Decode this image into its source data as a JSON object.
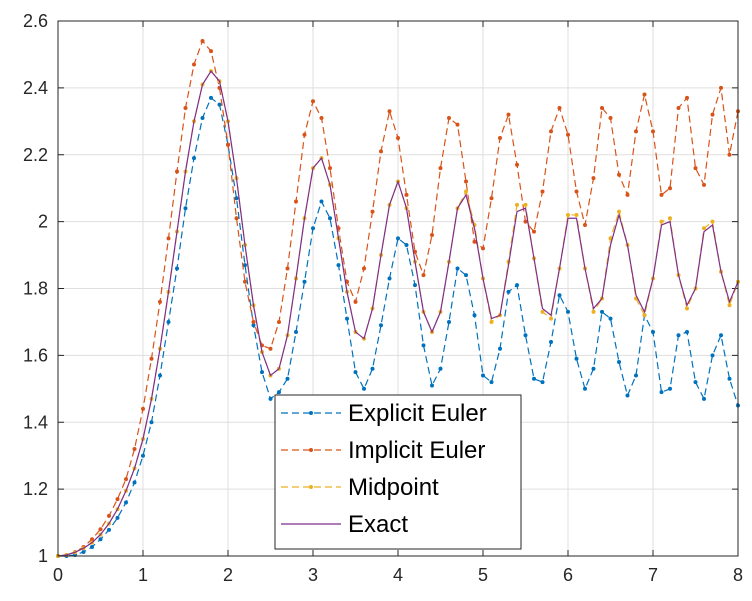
{
  "chart_data": {
    "type": "line",
    "title": "",
    "xlabel": "",
    "ylabel": "",
    "xlim": [
      0,
      8
    ],
    "ylim": [
      1,
      2.6
    ],
    "xticks": [
      "0",
      "1",
      "2",
      "3",
      "4",
      "5",
      "6",
      "7",
      "8"
    ],
    "yticks": [
      "1",
      "1.2",
      "1.4",
      "1.6",
      "1.8",
      "2",
      "2.2",
      "2.4",
      "2.6"
    ],
    "grid": true,
    "legend_position": "bottom-center",
    "series": [
      {
        "name": "Explicit Euler",
        "color": "#0072BD",
        "style": "dashed-dots",
        "x": [
          0,
          0.1,
          0.2,
          0.3,
          0.4,
          0.5,
          0.6,
          0.7,
          0.8,
          0.9,
          1.0,
          1.1,
          1.2,
          1.3,
          1.4,
          1.5,
          1.6,
          1.7,
          1.8,
          1.9,
          2.0,
          2.1,
          2.2,
          2.3,
          2.4,
          2.5,
          2.6,
          2.7,
          2.8,
          2.9,
          3.0,
          3.1,
          3.2,
          3.3,
          3.4,
          3.5,
          3.6,
          3.7,
          3.8,
          3.9,
          4.0,
          4.1,
          4.2,
          4.3,
          4.4,
          4.5,
          4.6,
          4.7,
          4.8,
          4.9,
          5.0,
          5.1,
          5.2,
          5.3,
          5.4,
          5.5,
          5.6,
          5.7,
          5.8,
          5.9,
          6.0,
          6.1,
          6.2,
          6.3,
          6.4,
          6.5,
          6.6,
          6.7,
          6.8,
          6.9,
          7.0,
          7.1,
          7.2,
          7.3,
          7.4,
          7.5,
          7.6,
          7.7,
          7.8,
          7.9,
          8.0
        ],
        "y": [
          1.0,
          1.0,
          1.003,
          1.012,
          1.027,
          1.05,
          1.078,
          1.114,
          1.16,
          1.22,
          1.3,
          1.4,
          1.54,
          1.7,
          1.86,
          2.04,
          2.19,
          2.31,
          2.37,
          2.35,
          2.23,
          2.07,
          1.87,
          1.69,
          1.55,
          1.47,
          1.49,
          1.53,
          1.67,
          1.82,
          1.98,
          2.06,
          2.01,
          1.87,
          1.71,
          1.55,
          1.5,
          1.56,
          1.69,
          1.83,
          1.95,
          1.93,
          1.81,
          1.63,
          1.51,
          1.56,
          1.7,
          1.86,
          1.84,
          1.72,
          1.54,
          1.52,
          1.62,
          1.79,
          1.81,
          1.66,
          1.53,
          1.52,
          1.64,
          1.78,
          1.73,
          1.59,
          1.5,
          1.56,
          1.73,
          1.71,
          1.58,
          1.48,
          1.54,
          1.72,
          1.67,
          1.49,
          1.5,
          1.66,
          1.67,
          1.52,
          1.47,
          1.6,
          1.66,
          1.53,
          1.45
        ]
      },
      {
        "name": "Implicit Euler",
        "color": "#D95319",
        "style": "dashed-dots",
        "x": [
          0,
          0.1,
          0.2,
          0.3,
          0.4,
          0.5,
          0.6,
          0.7,
          0.8,
          0.9,
          1.0,
          1.1,
          1.2,
          1.3,
          1.4,
          1.5,
          1.6,
          1.7,
          1.8,
          1.9,
          2.0,
          2.1,
          2.2,
          2.3,
          2.4,
          2.5,
          2.6,
          2.7,
          2.8,
          2.9,
          3.0,
          3.1,
          3.2,
          3.3,
          3.4,
          3.5,
          3.6,
          3.7,
          3.8,
          3.9,
          4.0,
          4.1,
          4.2,
          4.3,
          4.4,
          4.5,
          4.6,
          4.7,
          4.8,
          4.9,
          5.0,
          5.1,
          5.2,
          5.3,
          5.4,
          5.5,
          5.6,
          5.7,
          5.8,
          5.9,
          6.0,
          6.1,
          6.2,
          6.3,
          6.4,
          6.5,
          6.6,
          6.7,
          6.8,
          6.9,
          7.0,
          7.1,
          7.2,
          7.3,
          7.4,
          7.5,
          7.6,
          7.7,
          7.8,
          7.9,
          8.0
        ],
        "y": [
          1.0,
          1.003,
          1.012,
          1.027,
          1.05,
          1.08,
          1.12,
          1.17,
          1.23,
          1.32,
          1.44,
          1.59,
          1.76,
          1.95,
          2.15,
          2.34,
          2.47,
          2.54,
          2.51,
          2.4,
          2.23,
          2.01,
          1.82,
          1.7,
          1.63,
          1.62,
          1.7,
          1.86,
          2.06,
          2.26,
          2.36,
          2.31,
          2.16,
          1.98,
          1.82,
          1.76,
          1.86,
          2.03,
          2.21,
          2.33,
          2.25,
          2.08,
          1.91,
          1.84,
          1.96,
          2.16,
          2.31,
          2.29,
          2.12,
          1.94,
          1.92,
          2.07,
          2.25,
          2.32,
          2.17,
          2.0,
          1.97,
          2.09,
          2.27,
          2.34,
          2.26,
          2.09,
          1.99,
          2.13,
          2.34,
          2.31,
          2.14,
          2.08,
          2.27,
          2.38,
          2.27,
          2.08,
          2.1,
          2.34,
          2.37,
          2.16,
          2.11,
          2.32,
          2.4,
          2.2,
          2.33
        ]
      },
      {
        "name": "Midpoint",
        "color": "#EDB120",
        "style": "dashed-dots",
        "x": [
          0,
          0.1,
          0.2,
          0.3,
          0.4,
          0.5,
          0.6,
          0.7,
          0.8,
          0.9,
          1.0,
          1.1,
          1.2,
          1.3,
          1.4,
          1.5,
          1.6,
          1.7,
          1.8,
          1.9,
          2.0,
          2.1,
          2.2,
          2.3,
          2.4,
          2.5,
          2.6,
          2.7,
          2.8,
          2.9,
          3.0,
          3.1,
          3.2,
          3.3,
          3.4,
          3.5,
          3.6,
          3.7,
          3.8,
          3.9,
          4.0,
          4.1,
          4.2,
          4.3,
          4.4,
          4.5,
          4.6,
          4.7,
          4.8,
          4.9,
          5.0,
          5.1,
          5.2,
          5.3,
          5.4,
          5.5,
          5.6,
          5.7,
          5.8,
          5.9,
          6.0,
          6.1,
          6.2,
          6.3,
          6.4,
          6.5,
          6.6,
          6.7,
          6.8,
          6.9,
          7.0,
          7.1,
          7.2,
          7.3,
          7.4,
          7.5,
          7.6,
          7.7,
          7.8,
          7.9,
          8.0
        ],
        "y": [
          1.0,
          1.003,
          1.011,
          1.023,
          1.04,
          1.064,
          1.097,
          1.14,
          1.195,
          1.262,
          1.35,
          1.47,
          1.62,
          1.79,
          1.97,
          2.15,
          2.3,
          2.41,
          2.45,
          2.42,
          2.3,
          2.13,
          1.93,
          1.75,
          1.61,
          1.54,
          1.56,
          1.66,
          1.83,
          2.01,
          2.16,
          2.19,
          2.11,
          1.95,
          1.79,
          1.67,
          1.65,
          1.74,
          1.9,
          2.05,
          2.12,
          2.04,
          1.88,
          1.73,
          1.67,
          1.73,
          1.88,
          2.04,
          2.09,
          1.99,
          1.83,
          1.7,
          1.72,
          1.88,
          2.05,
          2.05,
          1.89,
          1.73,
          1.71,
          1.86,
          2.02,
          2.02,
          1.86,
          1.73,
          1.77,
          1.95,
          2.03,
          1.93,
          1.77,
          1.72,
          1.83,
          2.0,
          2.01,
          1.84,
          1.74,
          1.8,
          1.98,
          2.0,
          1.85,
          1.75,
          1.82
        ]
      },
      {
        "name": "Exact",
        "color": "#7E2F8E",
        "style": "solid",
        "x": [
          0,
          0.1,
          0.2,
          0.3,
          0.4,
          0.5,
          0.6,
          0.7,
          0.8,
          0.9,
          1.0,
          1.1,
          1.2,
          1.3,
          1.4,
          1.5,
          1.6,
          1.7,
          1.8,
          1.9,
          2.0,
          2.1,
          2.2,
          2.3,
          2.4,
          2.5,
          2.6,
          2.7,
          2.8,
          2.9,
          3.0,
          3.1,
          3.2,
          3.3,
          3.4,
          3.5,
          3.6,
          3.7,
          3.8,
          3.9,
          4.0,
          4.1,
          4.2,
          4.3,
          4.4,
          4.5,
          4.6,
          4.7,
          4.8,
          4.9,
          5.0,
          5.1,
          5.2,
          5.3,
          5.4,
          5.5,
          5.6,
          5.7,
          5.8,
          5.9,
          6.0,
          6.1,
          6.2,
          6.3,
          6.4,
          6.5,
          6.6,
          6.7,
          6.8,
          6.9,
          7.0,
          7.1,
          7.2,
          7.3,
          7.4,
          7.5,
          7.6,
          7.7,
          7.8,
          7.9,
          8.0
        ],
        "y": [
          1.0,
          1.003,
          1.011,
          1.023,
          1.04,
          1.064,
          1.097,
          1.14,
          1.195,
          1.262,
          1.35,
          1.47,
          1.62,
          1.79,
          1.97,
          2.15,
          2.3,
          2.41,
          2.45,
          2.42,
          2.3,
          2.13,
          1.93,
          1.75,
          1.61,
          1.54,
          1.56,
          1.66,
          1.83,
          2.01,
          2.16,
          2.19,
          2.11,
          1.95,
          1.79,
          1.67,
          1.65,
          1.74,
          1.9,
          2.05,
          2.12,
          2.04,
          1.88,
          1.73,
          1.67,
          1.73,
          1.88,
          2.04,
          2.08,
          1.98,
          1.83,
          1.71,
          1.72,
          1.87,
          2.03,
          2.04,
          1.89,
          1.74,
          1.72,
          1.86,
          2.01,
          2.01,
          1.86,
          1.74,
          1.77,
          1.93,
          2.02,
          1.93,
          1.78,
          1.73,
          1.83,
          1.99,
          2.0,
          1.84,
          1.75,
          1.8,
          1.97,
          1.99,
          1.85,
          1.76,
          1.82
        ]
      }
    ]
  }
}
